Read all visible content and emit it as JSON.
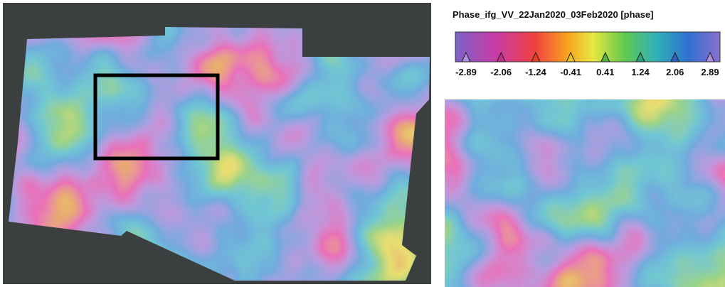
{
  "colorbar": {
    "title": "Phase_ifg_VV_22Jan2020_03Feb2020 [phase]",
    "ticks": [
      -2.89,
      -2.06,
      -1.24,
      -0.41,
      0.41,
      1.24,
      2.06,
      2.89
    ]
  }
}
